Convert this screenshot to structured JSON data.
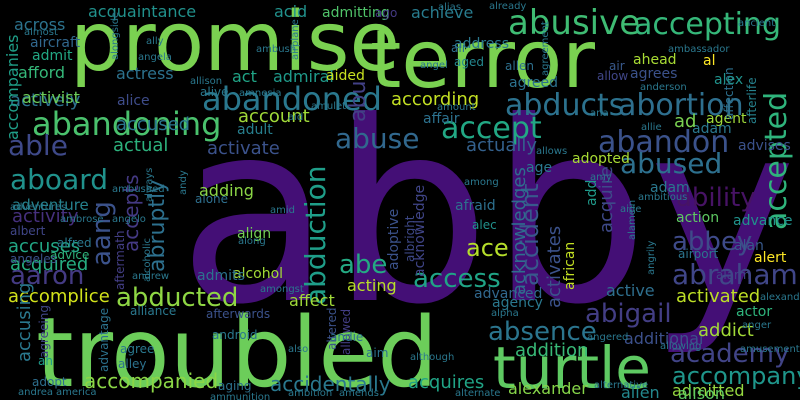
{
  "words": [
    {
      "text": "abby",
      "color": "#440f76"
    },
    {
      "text": "troubled",
      "color": "#6ccd5a"
    },
    {
      "text": "promise",
      "color": "#7ad151"
    },
    {
      "text": "terror",
      "color": "#7ad151"
    },
    {
      "text": "turtle",
      "color": "#5ec962"
    },
    {
      "text": "abusive",
      "color": "#3fbc73"
    },
    {
      "text": "accepting",
      "color": "#35b779"
    },
    {
      "text": "abandoned",
      "color": "#2a788e"
    },
    {
      "text": "abandoning",
      "color": "#4ac16d"
    },
    {
      "text": "abducts",
      "color": "#2c728e"
    },
    {
      "text": "abortion",
      "color": "#2e6f8e"
    },
    {
      "text": "abandon",
      "color": "#3b528b"
    },
    {
      "text": "accepted",
      "color": "#2fb47c"
    },
    {
      "text": "accept",
      "color": "#22a884"
    },
    {
      "text": "abuse",
      "color": "#31688e"
    },
    {
      "text": "abused",
      "color": "#2d708e"
    },
    {
      "text": "abduction",
      "color": "#1f9e89"
    },
    {
      "text": "aboard",
      "color": "#20928c"
    },
    {
      "text": "able",
      "color": "#3e4989"
    },
    {
      "text": "ability",
      "color": "#471365"
    },
    {
      "text": "abbey",
      "color": "#3e4a89"
    },
    {
      "text": "abraham",
      "color": "#404688"
    },
    {
      "text": "abigail",
      "color": "#433e85"
    },
    {
      "text": "aaron",
      "color": "#443a83"
    },
    {
      "text": "abducted",
      "color": "#8fd744"
    },
    {
      "text": "academy",
      "color": "#414487"
    },
    {
      "text": "absence",
      "color": "#2b758e"
    },
    {
      "text": "accompany",
      "color": "#1f968b"
    },
    {
      "text": "accompanied",
      "color": "#8bd646"
    },
    {
      "text": "accidentally",
      "color": "#2a788e"
    },
    {
      "text": "abe",
      "color": "#24aa83"
    },
    {
      "text": "access",
      "color": "#20a486"
    },
    {
      "text": "abu",
      "color": "#424186"
    },
    {
      "text": "abruptly",
      "color": "#2d708e"
    },
    {
      "text": "accepts",
      "color": "#443983"
    },
    {
      "text": "aang",
      "color": "#3b528b"
    },
    {
      "text": "ace",
      "color": "#b5de2b"
    },
    {
      "text": "accident",
      "color": "#38598c"
    },
    {
      "text": "acknowledges",
      "color": "#2e6e8e"
    },
    {
      "text": "acknowledge",
      "color": "#404588"
    },
    {
      "text": "accomplice",
      "color": "#d2e21b"
    },
    {
      "text": "accuses",
      "color": "#22a785"
    },
    {
      "text": "accused",
      "color": "#2a768e"
    },
    {
      "text": "according",
      "color": "#c2df23"
    },
    {
      "text": "account",
      "color": "#a0da39"
    },
    {
      "text": "actively",
      "color": "#2c728e"
    },
    {
      "text": "actually",
      "color": "#34618d"
    },
    {
      "text": "activate",
      "color": "#3b528b"
    },
    {
      "text": "activated",
      "color": "#bddf26"
    },
    {
      "text": "activity",
      "color": "#46307e"
    },
    {
      "text": "acquired",
      "color": "#26ad81"
    },
    {
      "text": "actual",
      "color": "#2db27d"
    },
    {
      "text": "adventure",
      "color": "#26828e"
    },
    {
      "text": "acquire",
      "color": "#3e4989"
    },
    {
      "text": "activates",
      "color": "#3b528b"
    },
    {
      "text": "accusing",
      "color": "#2a788e"
    },
    {
      "text": "addition",
      "color": "#38b977"
    },
    {
      "text": "additional",
      "color": "#3c508b"
    },
    {
      "text": "admitted",
      "color": "#95d840"
    },
    {
      "text": "addict",
      "color": "#a2da37"
    },
    {
      "text": "acquires",
      "color": "#20a486"
    },
    {
      "text": "alexander",
      "color": "#86d549"
    },
    {
      "text": "alison",
      "color": "#5ec962"
    },
    {
      "text": "alien",
      "color": "#23888e"
    },
    {
      "text": "acquaintance",
      "color": "#21918c"
    },
    {
      "text": "accompanies",
      "color": "#1f9f88"
    },
    {
      "text": "across",
      "color": "#2c738e"
    },
    {
      "text": "acid",
      "color": "#21918c"
    },
    {
      "text": "admitting",
      "color": "#50c46a"
    },
    {
      "text": "achieve",
      "color": "#287c8e"
    },
    {
      "text": "address",
      "color": "#2a788e"
    },
    {
      "text": "ago",
      "color": "#443983"
    },
    {
      "text": "aircraft",
      "color": "#31688e"
    },
    {
      "text": "admit",
      "color": "#22a884"
    },
    {
      "text": "afford",
      "color": "#35b779"
    },
    {
      "text": "actress",
      "color": "#2c728e"
    },
    {
      "text": "act",
      "color": "#20a486"
    },
    {
      "text": "admiral",
      "color": "#1f9a8a"
    },
    {
      "text": "aided",
      "color": "#c8e020"
    },
    {
      "text": "activist",
      "color": "#6ccd5a"
    },
    {
      "text": "alice",
      "color": "#3e4c8a"
    },
    {
      "text": "affair",
      "color": "#2c718e"
    },
    {
      "text": "adult",
      "color": "#277f8e"
    },
    {
      "text": "adding",
      "color": "#8bd646"
    },
    {
      "text": "acting",
      "color": "#b8de29"
    },
    {
      "text": "align",
      "color": "#73d056"
    },
    {
      "text": "alcohol",
      "color": "#a2da37"
    },
    {
      "text": "admits",
      "color": "#2c728e"
    },
    {
      "text": "affect",
      "color": "#a0da39"
    },
    {
      "text": "advanced",
      "color": "#31688e"
    },
    {
      "text": "active",
      "color": "#2e6f8e"
    },
    {
      "text": "agency",
      "color": "#2a788e"
    },
    {
      "text": "african",
      "color": "#c2df23"
    },
    {
      "text": "add",
      "color": "#1f9a8a"
    },
    {
      "text": "adoptive",
      "color": "#3b528b"
    },
    {
      "text": "albright",
      "color": "#3e4989"
    },
    {
      "text": "afraid",
      "color": "#2d708e"
    },
    {
      "text": "alec",
      "color": "#21918c"
    },
    {
      "text": "adopted",
      "color": "#a8db34"
    },
    {
      "text": "agreed",
      "color": "#2c728e"
    },
    {
      "text": "adam",
      "color": "#2a788e"
    },
    {
      "text": "adam",
      "color": "#2a788e"
    },
    {
      "text": "advises",
      "color": "#3b528b"
    },
    {
      "text": "agent",
      "color": "#9fda3a"
    },
    {
      "text": "ad",
      "color": "#7ad151"
    },
    {
      "text": "action",
      "color": "#5ec962"
    },
    {
      "text": "alan",
      "color": "#38598c"
    },
    {
      "text": "alert",
      "color": "#fde725"
    },
    {
      "text": "advance",
      "color": "#20928c"
    },
    {
      "text": "alarm",
      "color": "#404688"
    },
    {
      "text": "airport",
      "color": "#2b758e"
    },
    {
      "text": "actor",
      "color": "#2fb47c"
    },
    {
      "text": "anger",
      "color": "#2a788e"
    },
    {
      "text": "afterlife",
      "color": "#26828e"
    },
    {
      "text": "affection",
      "color": "#2d708e"
    },
    {
      "text": "al",
      "color": "#fde725"
    },
    {
      "text": "ahead",
      "color": "#a8db34"
    },
    {
      "text": "agrees",
      "color": "#3b528b"
    },
    {
      "text": "allow",
      "color": "#404688"
    },
    {
      "text": "air",
      "color": "#38598c"
    },
    {
      "text": "alex",
      "color": "#20928c"
    },
    {
      "text": "allen",
      "color": "#2d708e"
    },
    {
      "text": "ali",
      "color": "#2e6e8e"
    },
    {
      "text": "aged",
      "color": "#24868e"
    },
    {
      "text": "alliance",
      "color": "#2a788e"
    },
    {
      "text": "afterwards",
      "color": "#3b528b"
    },
    {
      "text": "advantage",
      "color": "#2c728e"
    },
    {
      "text": "advice",
      "color": "#2fb47c"
    },
    {
      "text": "albert",
      "color": "#404688"
    },
    {
      "text": "alfred",
      "color": "#2a788e"
    },
    {
      "text": "aftermath",
      "color": "#433e85"
    },
    {
      "text": "agree",
      "color": "#2a788e"
    },
    {
      "text": "alley",
      "color": "#2c728e"
    },
    {
      "text": "android",
      "color": "#2a788e"
    },
    {
      "text": "allowed",
      "color": "#433e85"
    },
    {
      "text": "andie",
      "color": "#2c728e"
    },
    {
      "text": "aim",
      "color": "#2c718e"
    },
    {
      "text": "altered",
      "color": "#3b528b"
    },
    {
      "text": "alive",
      "color": "#2a788e"
    },
    {
      "text": "adopt",
      "color": "#2e6f8e"
    },
    {
      "text": "ah",
      "color": "#1f9a8a"
    },
    {
      "text": "aging",
      "color": "#2c728e"
    },
    {
      "text": "agreeing",
      "color": "#404688"
    },
    {
      "text": "alone",
      "color": "#2e6f8e"
    },
    {
      "text": "angeles",
      "color": "#3b528b"
    },
    {
      "text": "adventures",
      "color": "#2a788e"
    },
    {
      "text": "alpha",
      "color": "#2a788e"
    },
    {
      "text": "alongside",
      "color": "#2a788e"
    },
    {
      "text": "america",
      "color": "#2a788e"
    },
    {
      "text": "andrea",
      "color": "#2a788e"
    },
    {
      "text": "ambition",
      "color": "#2a788e"
    },
    {
      "text": "amends",
      "color": "#2a788e"
    },
    {
      "text": "alternate",
      "color": "#2a788e"
    },
    {
      "text": "alternative",
      "color": "#2a788e"
    },
    {
      "text": "amusement",
      "color": "#2a788e"
    },
    {
      "text": "allowing",
      "color": "#2a788e"
    },
    {
      "text": "angered",
      "color": "#2a788e"
    },
    {
      "text": "although",
      "color": "#2a788e"
    },
    {
      "text": "also",
      "color": "#2a788e"
    },
    {
      "text": "amongst",
      "color": "#2a788e"
    },
    {
      "text": "andrew",
      "color": "#2a788e"
    },
    {
      "text": "ambushed",
      "color": "#2a788e"
    },
    {
      "text": "ambrose",
      "color": "#2a788e"
    },
    {
      "text": "almost",
      "color": "#2a788e"
    },
    {
      "text": "allison",
      "color": "#2a788e"
    },
    {
      "text": "angela",
      "color": "#2a788e"
    },
    {
      "text": "ally",
      "color": "#2a788e"
    },
    {
      "text": "ambush",
      "color": "#2a788e"
    },
    {
      "text": "angel",
      "color": "#2a788e"
    },
    {
      "text": "airplane",
      "color": "#2a788e"
    },
    {
      "text": "alias",
      "color": "#2a788e"
    },
    {
      "text": "already",
      "color": "#2a788e"
    },
    {
      "text": "agreement",
      "color": "#2a788e"
    },
    {
      "text": "ambassador",
      "color": "#2a788e"
    },
    {
      "text": "ancient",
      "color": "#2a788e"
    },
    {
      "text": "amnesia",
      "color": "#2a788e"
    },
    {
      "text": "amulet",
      "color": "#2a788e"
    },
    {
      "text": "amount",
      "color": "#2a788e"
    },
    {
      "text": "ana",
      "color": "#2a788e"
    },
    {
      "text": "anderson",
      "color": "#2a788e"
    },
    {
      "text": "allie",
      "color": "#2a788e"
    },
    {
      "text": "allows",
      "color": "#2a788e"
    },
    {
      "text": "amy",
      "color": "#2a788e"
    },
    {
      "text": "among",
      "color": "#2a788e"
    },
    {
      "text": "age",
      "color": "#2a788e"
    },
    {
      "text": "aide",
      "color": "#2a788e"
    },
    {
      "text": "ambitious",
      "color": "#2a788e"
    },
    {
      "text": "alamein",
      "color": "#2a788e"
    },
    {
      "text": "angrily",
      "color": "#2a788e"
    },
    {
      "text": "amid",
      "color": "#2a788e"
    },
    {
      "text": "andy",
      "color": "#2a788e"
    },
    {
      "text": "always",
      "color": "#2a788e"
    },
    {
      "text": "angelo",
      "color": "#2a788e"
    },
    {
      "text": "aid",
      "color": "#2a788e"
    },
    {
      "text": "along",
      "color": "#2a788e"
    },
    {
      "text": "alcoholic",
      "color": "#2a788e"
    },
    {
      "text": "ammunition",
      "color": "#2a788e"
    },
    {
      "text": "alexandra",
      "color": "#2a788e"
    }
  ]
}
